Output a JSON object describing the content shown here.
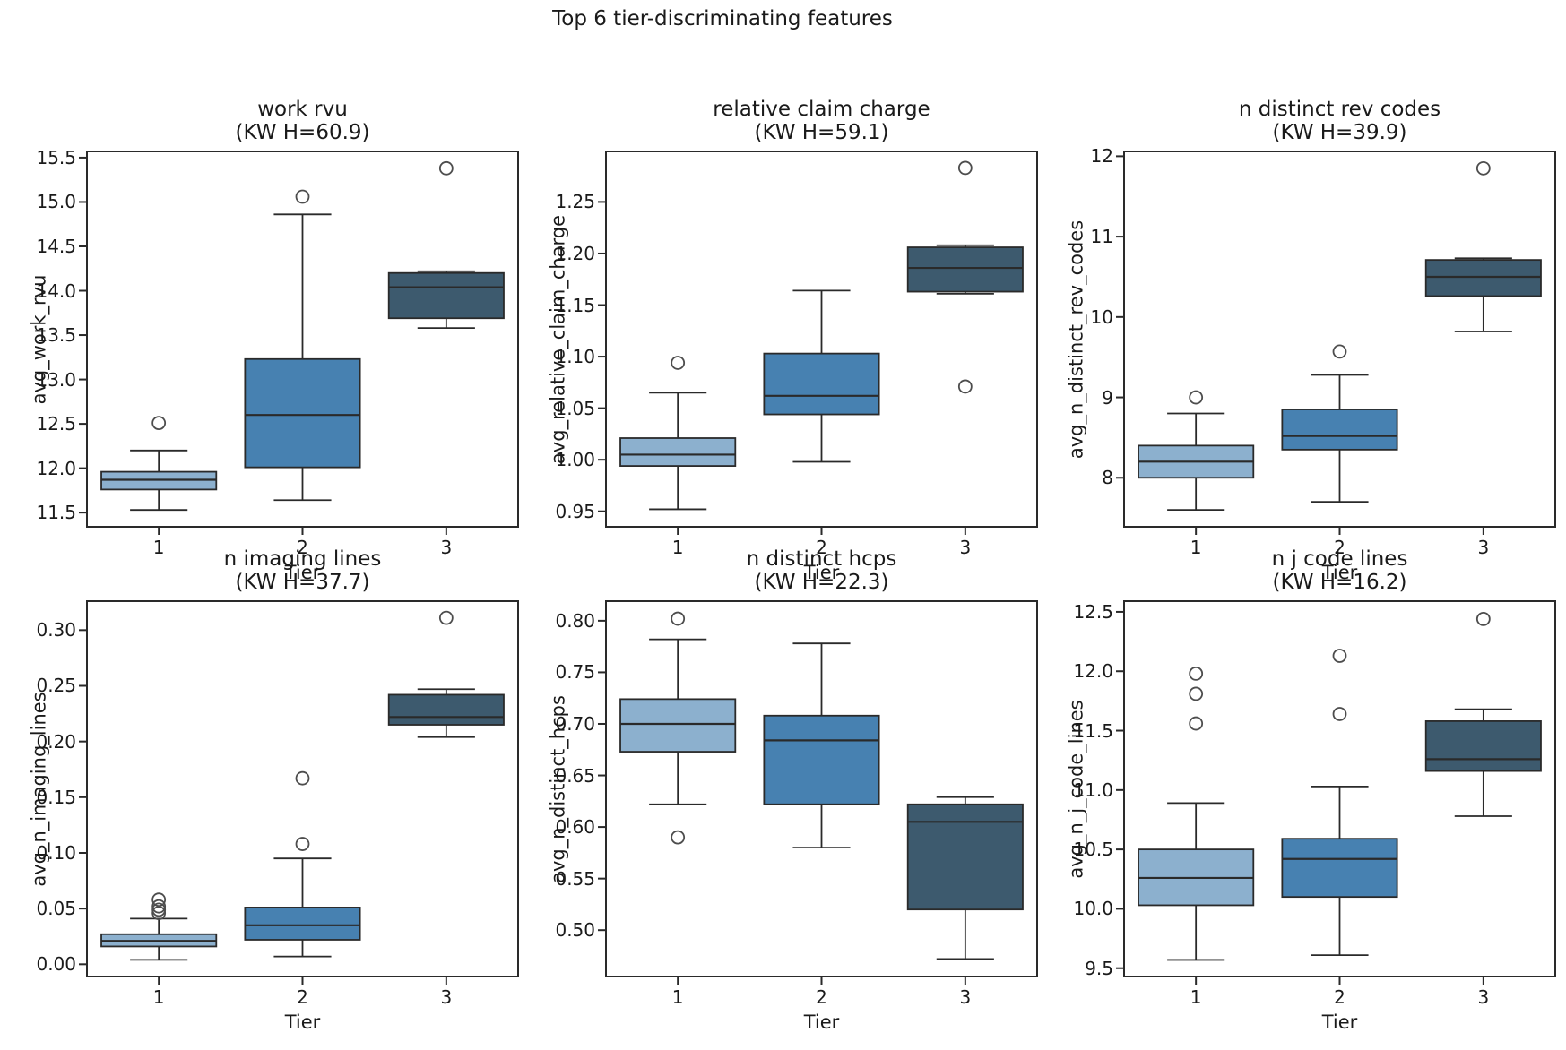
{
  "figure": {
    "suptitle": "Top 6 tier-discriminating features",
    "text_color": "#1a1a1a",
    "edge_color": "#2a2a2a",
    "flier_color": "#4d4d4d",
    "background": "#ffffff",
    "tier_colors": {
      "tier1": "#8cb0ce",
      "tier2": "#4781b1",
      "tier3": "#3d5a6e"
    }
  },
  "chart_data": [
    {
      "type": "box",
      "title": "work rvu",
      "subtitle": "(KW H=60.9)",
      "kw_h": 60.9,
      "xlabel": "Tier",
      "ylabel": "avg_work_rvu",
      "categories": [
        "1",
        "2",
        "3"
      ],
      "ylim": [
        11.34,
        15.57
      ],
      "yticks": [
        "11.5",
        "12.0",
        "12.5",
        "13.0",
        "13.5",
        "14.0",
        "14.5",
        "15.0",
        "15.5"
      ],
      "series": [
        {
          "name": "Tier 1",
          "color": "#8cb0ce",
          "whisker_low": 11.53,
          "q1": 11.76,
          "median": 11.87,
          "q3": 11.96,
          "whisker_high": 12.2,
          "outliers": [
            12.51
          ]
        },
        {
          "name": "Tier 2",
          "color": "#4781b1",
          "whisker_low": 11.64,
          "q1": 12.01,
          "median": 12.6,
          "q3": 13.23,
          "whisker_high": 14.86,
          "outliers": [
            15.06
          ]
        },
        {
          "name": "Tier 3",
          "color": "#3d5a6e",
          "whisker_low": 13.58,
          "q1": 13.69,
          "median": 14.04,
          "q3": 14.2,
          "whisker_high": 14.22,
          "outliers": [
            15.38
          ]
        }
      ]
    },
    {
      "type": "box",
      "title": "relative claim charge",
      "subtitle": "(KW H=59.1)",
      "kw_h": 59.1,
      "xlabel": "Tier",
      "ylabel": "avg_relative_claim_charge",
      "categories": [
        "1",
        "2",
        "3"
      ],
      "ylim": [
        0.935,
        1.299
      ],
      "yticks": [
        "0.95",
        "1.00",
        "1.05",
        "1.10",
        "1.15",
        "1.20",
        "1.25"
      ],
      "series": [
        {
          "name": "Tier 1",
          "color": "#8cb0ce",
          "whisker_low": 0.952,
          "q1": 0.994,
          "median": 1.005,
          "q3": 1.021,
          "whisker_high": 1.065,
          "outliers": [
            1.094
          ]
        },
        {
          "name": "Tier 2",
          "color": "#4781b1",
          "whisker_low": 0.998,
          "q1": 1.044,
          "median": 1.062,
          "q3": 1.103,
          "whisker_high": 1.164,
          "outliers": []
        },
        {
          "name": "Tier 3",
          "color": "#3d5a6e",
          "whisker_low": 1.161,
          "q1": 1.163,
          "median": 1.186,
          "q3": 1.206,
          "whisker_high": 1.208,
          "outliers": [
            1.283,
            1.071
          ]
        }
      ]
    },
    {
      "type": "box",
      "title": "n distinct rev codes",
      "subtitle": "(KW H=39.9)",
      "kw_h": 39.9,
      "xlabel": "Tier",
      "ylabel": "avg_n_distinct_rev_codes",
      "categories": [
        "1",
        "2",
        "3"
      ],
      "ylim": [
        7.39,
        12.06
      ],
      "yticks": [
        "8",
        "9",
        "10",
        "11",
        "12"
      ],
      "series": [
        {
          "name": "Tier 1",
          "color": "#8cb0ce",
          "whisker_low": 7.6,
          "q1": 8.0,
          "median": 8.2,
          "q3": 8.4,
          "whisker_high": 8.8,
          "outliers": [
            9.0
          ]
        },
        {
          "name": "Tier 2",
          "color": "#4781b1",
          "whisker_low": 7.7,
          "q1": 8.35,
          "median": 8.52,
          "q3": 8.85,
          "whisker_high": 9.28,
          "outliers": [
            9.57
          ]
        },
        {
          "name": "Tier 3",
          "color": "#3d5a6e",
          "whisker_low": 9.82,
          "q1": 10.26,
          "median": 10.5,
          "q3": 10.71,
          "whisker_high": 10.73,
          "outliers": [
            11.85
          ]
        }
      ]
    },
    {
      "type": "box",
      "title": "n imaging lines",
      "subtitle": "(KW H=37.7)",
      "kw_h": 37.7,
      "xlabel": "Tier",
      "ylabel": "avg_n_imaging_lines",
      "categories": [
        "1",
        "2",
        "3"
      ],
      "ylim": [
        -0.011,
        0.326
      ],
      "yticks": [
        "0.00",
        "0.05",
        "0.10",
        "0.15",
        "0.20",
        "0.25",
        "0.30"
      ],
      "series": [
        {
          "name": "Tier 1",
          "color": "#8cb0ce",
          "whisker_low": 0.004,
          "q1": 0.016,
          "median": 0.021,
          "q3": 0.027,
          "whisker_high": 0.041,
          "outliers": [
            0.046,
            0.049,
            0.052,
            0.058
          ]
        },
        {
          "name": "Tier 2",
          "color": "#4781b1",
          "whisker_low": 0.007,
          "q1": 0.022,
          "median": 0.035,
          "q3": 0.051,
          "whisker_high": 0.095,
          "outliers": [
            0.108,
            0.167
          ]
        },
        {
          "name": "Tier 3",
          "color": "#3d5a6e",
          "whisker_low": 0.204,
          "q1": 0.215,
          "median": 0.222,
          "q3": 0.242,
          "whisker_high": 0.247,
          "outliers": [
            0.311
          ]
        }
      ]
    },
    {
      "type": "box",
      "title": "n distinct hcps",
      "subtitle": "(KW H=22.3)",
      "kw_h": 22.3,
      "xlabel": "Tier",
      "ylabel": "avg_n_distinct_hcps",
      "categories": [
        "1",
        "2",
        "3"
      ],
      "ylim": [
        0.455,
        0.819
      ],
      "yticks": [
        "0.50",
        "0.55",
        "0.60",
        "0.65",
        "0.70",
        "0.75",
        "0.80"
      ],
      "series": [
        {
          "name": "Tier 1",
          "color": "#8cb0ce",
          "whisker_low": 0.622,
          "q1": 0.673,
          "median": 0.7,
          "q3": 0.724,
          "whisker_high": 0.782,
          "outliers": [
            0.802,
            0.59
          ]
        },
        {
          "name": "Tier 2",
          "color": "#4781b1",
          "whisker_low": 0.58,
          "q1": 0.622,
          "median": 0.684,
          "q3": 0.708,
          "whisker_high": 0.778,
          "outliers": []
        },
        {
          "name": "Tier 3",
          "color": "#3d5a6e",
          "whisker_low": 0.472,
          "q1": 0.52,
          "median": 0.605,
          "q3": 0.622,
          "whisker_high": 0.629,
          "outliers": []
        }
      ]
    },
    {
      "type": "box",
      "title": "n j code lines",
      "subtitle": "(KW H=16.2)",
      "kw_h": 16.2,
      "xlabel": "Tier",
      "ylabel": "avg_n_j_code_lines",
      "categories": [
        "1",
        "2",
        "3"
      ],
      "ylim": [
        9.43,
        12.59
      ],
      "yticks": [
        "9.5",
        "10.0",
        "10.5",
        "11.0",
        "11.5",
        "12.0",
        "12.5"
      ],
      "series": [
        {
          "name": "Tier 1",
          "color": "#8cb0ce",
          "whisker_low": 9.57,
          "q1": 10.03,
          "median": 10.26,
          "q3": 10.5,
          "whisker_high": 10.89,
          "outliers": [
            11.56,
            11.81,
            11.98
          ]
        },
        {
          "name": "Tier 2",
          "color": "#4781b1",
          "whisker_low": 9.61,
          "q1": 10.1,
          "median": 10.42,
          "q3": 10.59,
          "whisker_high": 11.03,
          "outliers": [
            11.64,
            12.13
          ]
        },
        {
          "name": "Tier 3",
          "color": "#3d5a6e",
          "whisker_low": 10.78,
          "q1": 11.16,
          "median": 11.26,
          "q3": 11.58,
          "whisker_high": 11.68,
          "outliers": [
            12.44
          ]
        }
      ]
    }
  ]
}
